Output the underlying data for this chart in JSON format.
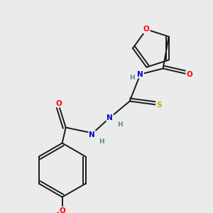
{
  "background_color": "#ebebeb",
  "bond_color": "#1a1a1a",
  "atom_colors": {
    "O": "#ff0000",
    "N": "#0000cd",
    "S": "#ccaa00",
    "H": "#5a8a8a",
    "C": "#1a1a1a"
  },
  "figsize": [
    3.0,
    3.0
  ],
  "dpi": 100
}
